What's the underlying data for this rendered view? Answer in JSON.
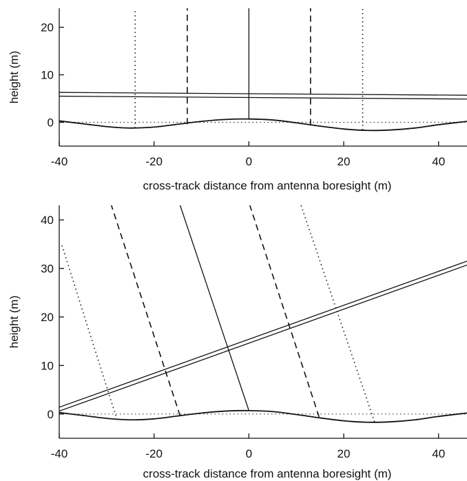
{
  "chart_data": [
    {
      "type": "line",
      "panel": "top",
      "title": "",
      "xlabel": "cross-track distance from antenna boresight (m)",
      "ylabel": "height (m)",
      "xlim": [
        -40,
        46
      ],
      "ylim": [
        -5,
        24
      ],
      "xticks": [
        -40,
        -20,
        0,
        20,
        40
      ],
      "yticks": [
        0,
        10,
        20
      ],
      "grid": false,
      "surface": {
        "name": "",
        "x": [
          -40,
          -35,
          -30,
          -25,
          -20,
          -15,
          -10,
          -5,
          0,
          5,
          10,
          15,
          20,
          25,
          30,
          35,
          40,
          46
        ],
        "y": [
          0.3,
          -0.3,
          -0.9,
          -1.2,
          -1.0,
          -0.4,
          0.2,
          0.6,
          0.7,
          0.5,
          -0.1,
          -0.8,
          -1.4,
          -1.7,
          -1.6,
          -1.2,
          -0.5,
          0.2
        ]
      },
      "reference_level": {
        "y": 0
      },
      "antenna_lines": [
        {
          "x": [
            -40,
            46
          ],
          "y": [
            6.3,
            5.7
          ]
        },
        {
          "x": [
            -40,
            46
          ],
          "y": [
            5.5,
            4.9
          ]
        }
      ],
      "boresight_lines": [
        {
          "style": "solid",
          "x": [
            0,
            0
          ],
          "y": [
            0.7,
            24
          ]
        },
        {
          "style": "dashed",
          "x": [
            -13,
            -13
          ],
          "y": [
            -0.4,
            24
          ]
        },
        {
          "style": "dashed",
          "x": [
            13,
            13
          ],
          "y": [
            -0.6,
            24
          ]
        },
        {
          "style": "dotted",
          "x": [
            -24,
            -24
          ],
          "y": [
            -1.2,
            24
          ]
        },
        {
          "style": "dotted",
          "x": [
            24,
            24
          ],
          "y": [
            -1.6,
            24
          ]
        }
      ]
    },
    {
      "type": "line",
      "panel": "bottom",
      "title": "",
      "xlabel": "cross-track distance from antenna boresight (m)",
      "ylabel": "height (m)",
      "xlim": [
        -40,
        46
      ],
      "ylim": [
        -5,
        43
      ],
      "xticks": [
        -40,
        -20,
        0,
        20,
        40
      ],
      "yticks": [
        0,
        10,
        20,
        30,
        40
      ],
      "grid": false,
      "surface": {
        "name": "",
        "x": [
          -40,
          -35,
          -30,
          -25,
          -20,
          -15,
          -10,
          -5,
          0,
          5,
          10,
          15,
          20,
          25,
          30,
          35,
          40,
          46
        ],
        "y": [
          0.3,
          -0.3,
          -0.9,
          -1.2,
          -1.0,
          -0.4,
          0.2,
          0.6,
          0.7,
          0.5,
          -0.1,
          -0.8,
          -1.4,
          -1.7,
          -1.6,
          -1.2,
          -0.5,
          0.2
        ]
      },
      "reference_level": {
        "y": 0
      },
      "antenna_lines": [
        {
          "x": [
            -40,
            46
          ],
          "y": [
            1.4,
            31.5
          ]
        },
        {
          "x": [
            -40,
            46
          ],
          "y": [
            0.6,
            30.7
          ]
        }
      ],
      "boresight_lines": [
        {
          "style": "solid",
          "x": [
            0,
            -14.5
          ],
          "y": [
            0.7,
            43
          ]
        },
        {
          "style": "dashed",
          "x": [
            -14.5,
            -29.0
          ],
          "y": [
            -0.4,
            43
          ]
        },
        {
          "style": "dashed",
          "x": [
            14.8,
            0.2
          ],
          "y": [
            -0.6,
            43
          ]
        },
        {
          "style": "dotted",
          "x": [
            -27.8,
            -39.5
          ],
          "y": [
            -1.2,
            35
          ]
        },
        {
          "style": "dotted",
          "x": [
            26.5,
            11.0
          ],
          "y": [
            -1.6,
            43
          ]
        }
      ]
    }
  ]
}
